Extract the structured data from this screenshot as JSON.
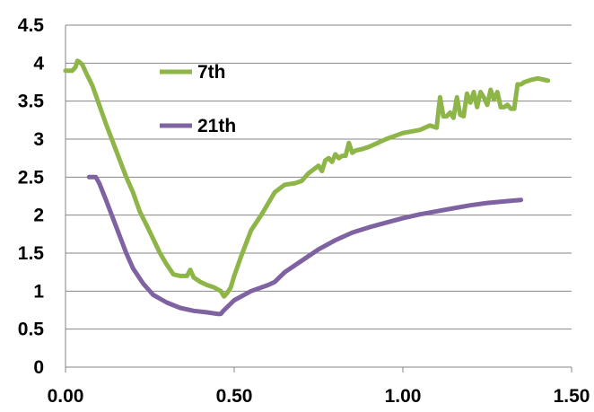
{
  "chart_data": {
    "type": "line",
    "title": "",
    "xlabel": "",
    "ylabel": "",
    "xlim": [
      0,
      1.5
    ],
    "ylim": [
      0,
      4.5
    ],
    "grid": "horizontal",
    "legend_position": "inside top-center",
    "x_ticks": [
      "0.00",
      "0.50",
      "1.00",
      "1.50"
    ],
    "x_tick_values": [
      0,
      0.5,
      1.0,
      1.5
    ],
    "y_ticks": [
      "0",
      "0.5",
      "1",
      "1.5",
      "2",
      "2.5",
      "3",
      "3.5",
      "4",
      "4.5"
    ],
    "y_tick_values": [
      0,
      0.5,
      1,
      1.5,
      2,
      2.5,
      3,
      3.5,
      4,
      4.5
    ],
    "series": [
      {
        "name": "7th",
        "color": "#8DB548",
        "x": [
          0.0,
          0.02,
          0.03,
          0.035,
          0.04,
          0.05,
          0.06,
          0.08,
          0.1,
          0.12,
          0.15,
          0.18,
          0.2,
          0.22,
          0.25,
          0.28,
          0.3,
          0.32,
          0.34,
          0.36,
          0.37,
          0.38,
          0.4,
          0.42,
          0.44,
          0.46,
          0.47,
          0.48,
          0.49,
          0.5,
          0.52,
          0.55,
          0.58,
          0.6,
          0.62,
          0.65,
          0.68,
          0.7,
          0.72,
          0.75,
          0.76,
          0.77,
          0.78,
          0.79,
          0.8,
          0.81,
          0.82,
          0.83,
          0.84,
          0.85,
          0.86,
          0.88,
          0.9,
          0.95,
          1.0,
          1.05,
          1.08,
          1.1,
          1.11,
          1.12,
          1.13,
          1.14,
          1.15,
          1.16,
          1.17,
          1.18,
          1.19,
          1.2,
          1.21,
          1.22,
          1.23,
          1.24,
          1.25,
          1.26,
          1.27,
          1.28,
          1.29,
          1.3,
          1.31,
          1.32,
          1.33,
          1.34,
          1.35,
          1.36,
          1.38,
          1.4,
          1.42,
          1.43
        ],
        "y": [
          3.9,
          3.9,
          3.95,
          4.03,
          4.02,
          3.98,
          3.88,
          3.7,
          3.45,
          3.2,
          2.85,
          2.5,
          2.3,
          2.05,
          1.78,
          1.5,
          1.35,
          1.22,
          1.2,
          1.2,
          1.28,
          1.18,
          1.12,
          1.08,
          1.05,
          1.0,
          0.93,
          0.98,
          1.05,
          1.2,
          1.45,
          1.8,
          2.0,
          2.15,
          2.3,
          2.4,
          2.42,
          2.45,
          2.55,
          2.65,
          2.58,
          2.72,
          2.75,
          2.7,
          2.8,
          2.75,
          2.78,
          2.78,
          2.95,
          2.82,
          2.85,
          2.87,
          2.9,
          3.0,
          3.08,
          3.12,
          3.18,
          3.15,
          3.55,
          3.3,
          3.3,
          3.35,
          3.28,
          3.55,
          3.32,
          3.3,
          3.6,
          3.48,
          3.62,
          3.42,
          3.62,
          3.55,
          3.45,
          3.65,
          3.52,
          3.62,
          3.42,
          3.42,
          3.45,
          3.4,
          3.4,
          3.72,
          3.72,
          3.75,
          3.78,
          3.8,
          3.78,
          3.77
        ]
      },
      {
        "name": "21th",
        "color": "#7F62A1",
        "x": [
          0.07,
          0.09,
          0.1,
          0.12,
          0.15,
          0.18,
          0.2,
          0.23,
          0.26,
          0.3,
          0.34,
          0.38,
          0.42,
          0.45,
          0.46,
          0.47,
          0.5,
          0.55,
          0.6,
          0.62,
          0.65,
          0.7,
          0.75,
          0.8,
          0.85,
          0.9,
          0.95,
          1.0,
          1.05,
          1.1,
          1.15,
          1.2,
          1.25,
          1.3,
          1.35
        ],
        "y": [
          2.5,
          2.5,
          2.42,
          2.2,
          1.85,
          1.5,
          1.3,
          1.1,
          0.95,
          0.85,
          0.78,
          0.74,
          0.72,
          0.7,
          0.7,
          0.75,
          0.88,
          1.0,
          1.08,
          1.12,
          1.25,
          1.4,
          1.55,
          1.67,
          1.77,
          1.84,
          1.9,
          1.96,
          2.01,
          2.05,
          2.09,
          2.13,
          2.16,
          2.18,
          2.2
        ]
      }
    ]
  }
}
